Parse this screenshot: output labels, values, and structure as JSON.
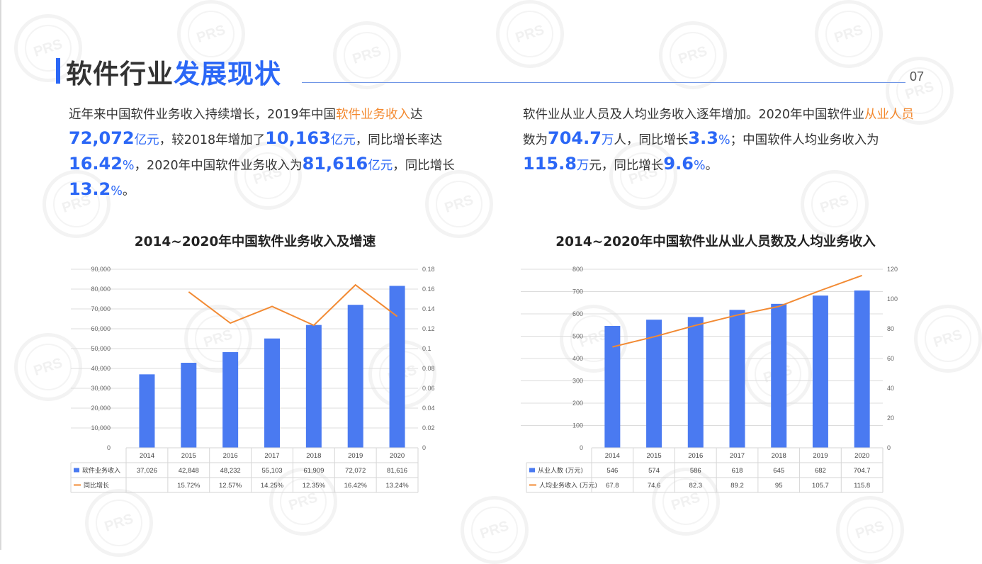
{
  "header": {
    "title_prefix": "软件行业",
    "title_highlight": "发展现状",
    "page_number": "07"
  },
  "left_text": {
    "s1": "近年来中国软件业务收入持续增长，2019年中国",
    "h1": "软件业务收入",
    "s2": "达",
    "n1": "72,072",
    "u1": "亿元",
    "s3": "，较2018年增加了",
    "n2": "10,163",
    "u2": "亿元",
    "s4": "，同比增长率达",
    "n3": "16.42",
    "u3": "%",
    "s5": "，2020年中国软件业务收入为",
    "n4": "81,616",
    "u4": "亿元",
    "s6": "，同比增长",
    "n5": "13.2",
    "u5": "%",
    "s7": "。"
  },
  "right_text": {
    "s1": "软件业从业人员及人均业务收入逐年增加。2020年中国软件业",
    "h1": "从业人员",
    "s2": "数为",
    "n1": "704.7",
    "u1": "万",
    "s3": "人，同比增长",
    "n2": "3.3",
    "u2": "%",
    "s4": "；中国软件人均业务收入为",
    "n3": "115.8",
    "u3": "万",
    "s5": "元，同比增长",
    "n4": "9.6",
    "u4": "%",
    "s6": "。"
  },
  "colors": {
    "bar": "#4a7af1",
    "line": "#f28a33",
    "accent": "#2b67f6",
    "orange_text": "#f3882d"
  },
  "chart_data": [
    {
      "type": "bar",
      "title": "2014~2020年中国软件业务收入及增速",
      "categories": [
        "2014",
        "2015",
        "2016",
        "2017",
        "2018",
        "2019",
        "2020"
      ],
      "series": [
        {
          "name": "软件业务收入",
          "kind": "bar",
          "axis": "left",
          "values": [
            37026,
            42848,
            48232,
            55103,
            61909,
            72072,
            81616
          ],
          "labels": [
            "37,026",
            "42,848",
            "48,232",
            "55,103",
            "61,909",
            "72,072",
            "81,616"
          ]
        },
        {
          "name": "同比增长",
          "kind": "line",
          "axis": "right",
          "values": [
            null,
            0.1572,
            0.1257,
            0.1425,
            0.1235,
            0.1642,
            0.1324
          ],
          "labels": [
            "",
            "15.72%",
            "12.57%",
            "14.25%",
            "12.35%",
            "16.42%",
            "13.24%"
          ]
        }
      ],
      "left_axis": {
        "min": 0,
        "max": 90000,
        "ticks": [
          "0",
          "10,000",
          "20,000",
          "30,000",
          "40,000",
          "50,000",
          "60,000",
          "70,000",
          "80,000",
          "90,000"
        ]
      },
      "right_axis": {
        "min": 0,
        "max": 0.18,
        "ticks": [
          "0",
          "0.02",
          "0.04",
          "0.06",
          "0.08",
          "0.1",
          "0.12",
          "0.14",
          "0.16",
          "0.18"
        ]
      },
      "grid": true,
      "legend": "data-table"
    },
    {
      "type": "bar",
      "title": "2014~2020年中国软件业从业人员数及人均业务收入",
      "categories": [
        "2014",
        "2015",
        "2016",
        "2017",
        "2018",
        "2019",
        "2020"
      ],
      "series": [
        {
          "name": "从业人数 (万元)",
          "kind": "bar",
          "axis": "left",
          "values": [
            546,
            574,
            586,
            618,
            645,
            682,
            704.7
          ],
          "labels": [
            "546",
            "574",
            "586",
            "618",
            "645",
            "682",
            "704.7"
          ]
        },
        {
          "name": "人均业务收入 (万元)",
          "kind": "line",
          "axis": "right",
          "values": [
            67.8,
            74.6,
            82.3,
            89.2,
            95,
            105.7,
            115.8
          ],
          "labels": [
            "67.8",
            "74.6",
            "82.3",
            "89.2",
            "95",
            "105.7",
            "115.8"
          ]
        }
      ],
      "left_axis": {
        "min": 0,
        "max": 800,
        "ticks": [
          "0",
          "100",
          "200",
          "300",
          "400",
          "500",
          "600",
          "700",
          "800"
        ]
      },
      "right_axis": {
        "min": 0,
        "max": 120,
        "ticks": [
          "0",
          "20",
          "40",
          "60",
          "80",
          "100",
          "120"
        ]
      },
      "grid": true,
      "legend": "data-table"
    }
  ]
}
